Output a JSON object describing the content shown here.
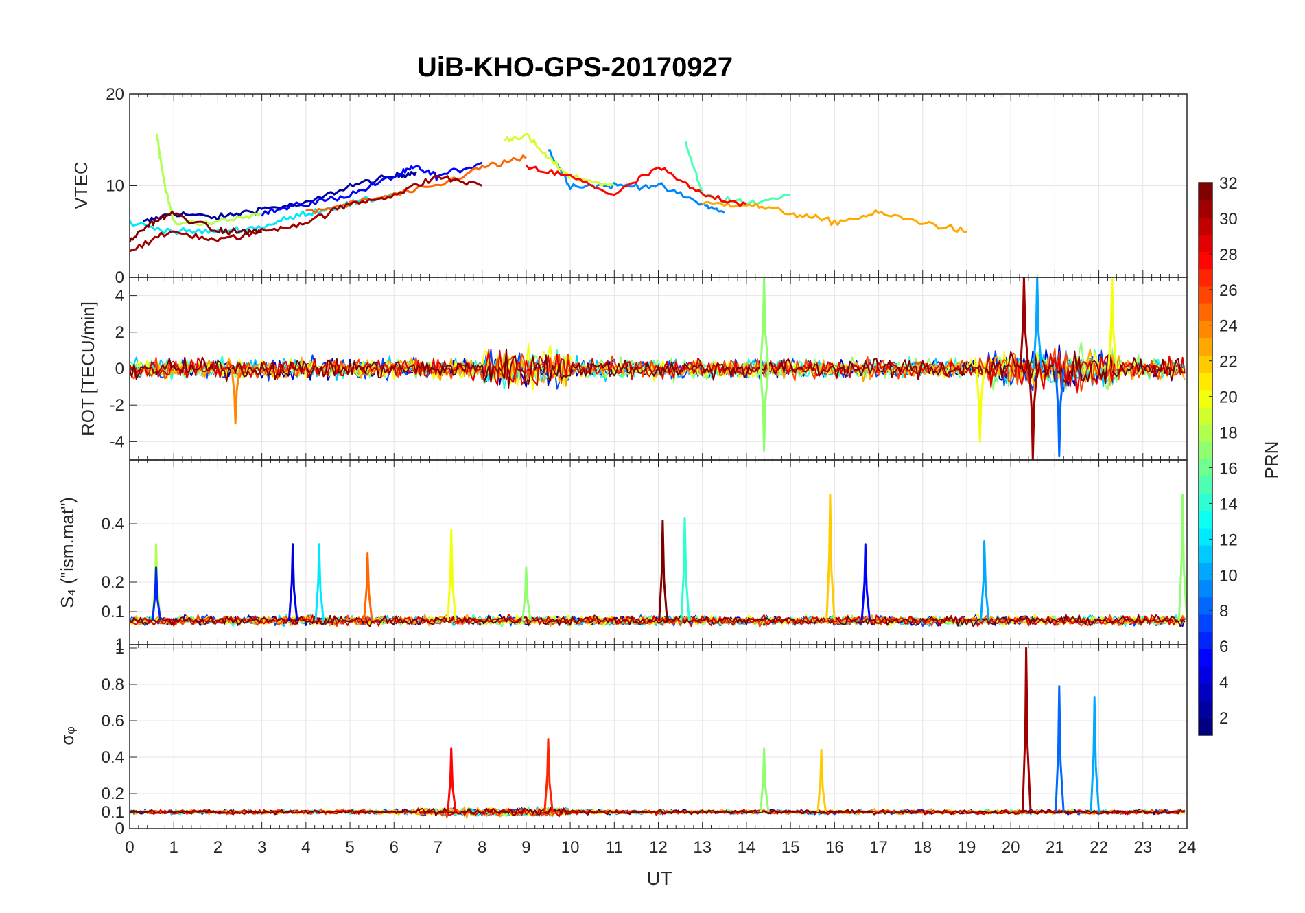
{
  "title": "UiB-KHO-GPS-20170927",
  "xlabel": "UT",
  "x_ticks": [
    "0",
    "1",
    "2",
    "3",
    "4",
    "5",
    "6",
    "7",
    "8",
    "9",
    "10",
    "11",
    "12",
    "13",
    "14",
    "15",
    "16",
    "17",
    "18",
    "19",
    "20",
    "21",
    "22",
    "23",
    "24"
  ],
  "colorbar": {
    "label": "PRN",
    "ticks": [
      "2",
      "4",
      "6",
      "8",
      "10",
      "12",
      "14",
      "16",
      "18",
      "20",
      "22",
      "24",
      "26",
      "28",
      "30",
      "32"
    ],
    "range": [
      1,
      32
    ],
    "colormap": "jet"
  },
  "panels": [
    {
      "ylabel": "VTEC",
      "ticks": [
        "0",
        "10",
        "20"
      ]
    },
    {
      "ylabel": "ROT [TECU/min]",
      "ticks": [
        "-4",
        "-2",
        "0",
        "2",
        "4"
      ]
    },
    {
      "ylabel": "S₄ (\"ism.mat\")",
      "ticks": [
        "0.1",
        "0.2",
        "0.4"
      ],
      "top_tick": "1"
    },
    {
      "ylabel": "σᵩ",
      "ticks": [
        "0",
        "0.1",
        "0.2",
        "0.4",
        "0.6",
        "0.8",
        "1"
      ]
    }
  ],
  "chart_data": {
    "type": "line",
    "x_range": [
      0,
      24
    ],
    "grid": true,
    "colors": {
      "jet_dark_red": "#800000",
      "jet_red": "#ff0000",
      "jet_yellow": "#ffff00",
      "jet_cyan": "#00ffff",
      "jet_blue": "#0000ff",
      "jet_dark_blue": "#000080"
    },
    "panels": [
      {
        "name": "VTEC",
        "ylim": [
          0,
          20
        ],
        "series": [
          {
            "prn": 2,
            "x": [
              0.3,
              1,
              2,
              3,
              4,
              5,
              6,
              6.5
            ],
            "y": [
              6,
              7,
              6.5,
              7.5,
              8,
              10,
              11,
              11.5
            ]
          },
          {
            "prn": 5,
            "x": [
              3,
              4,
              5,
              6,
              6.5,
              7,
              8
            ],
            "y": [
              7,
              8,
              9,
              11,
              12,
              11,
              12.5
            ]
          },
          {
            "prn": 9,
            "x": [
              9.5,
              10,
              11,
              12,
              13,
              13.5
            ],
            "y": [
              14,
              10,
              10,
              10,
              8,
              7
            ]
          },
          {
            "prn": 12,
            "x": [
              0,
              1,
              2,
              3,
              4,
              5,
              6
            ],
            "y": [
              6,
              5,
              5,
              5.5,
              7,
              8,
              9
            ]
          },
          {
            "prn": 15,
            "x": [
              12.6,
              13,
              14,
              15
            ],
            "y": [
              15,
              9,
              8,
              9
            ]
          },
          {
            "prn": 18,
            "x": [
              0.6,
              0.8,
              1,
              2,
              3
            ],
            "y": [
              16,
              10,
              6,
              6,
              7
            ]
          },
          {
            "prn": 19,
            "x": [
              8.5,
              9,
              9.5,
              10,
              11
            ],
            "y": [
              15,
              15.5,
              13,
              11,
              10
            ]
          },
          {
            "prn": 23,
            "x": [
              13,
              14,
              15,
              16,
              17,
              18,
              19
            ],
            "y": [
              8,
              8,
              7,
              6,
              7,
              6,
              5
            ]
          },
          {
            "prn": 25,
            "x": [
              4,
              5,
              6,
              7,
              8,
              9
            ],
            "y": [
              7,
              8,
              9,
              10,
              12,
              13
            ]
          },
          {
            "prn": 28,
            "x": [
              9,
              10,
              11,
              12,
              13,
              14
            ],
            "y": [
              12,
              11,
              9,
              12,
              9,
              8
            ]
          },
          {
            "prn": 31,
            "x": [
              0,
              1,
              2,
              3,
              4,
              5,
              6,
              7,
              8
            ],
            "y": [
              3,
              5,
              4,
              5,
              6,
              8,
              9,
              11,
              10
            ]
          },
          {
            "prn": 32,
            "x": [
              0,
              0.5,
              1,
              2,
              2.5,
              3
            ],
            "y": [
              4,
              6,
              7,
              5,
              5,
              5
            ]
          }
        ]
      },
      {
        "name": "ROT",
        "ylim": [
          -5,
          5
        ],
        "peaks": [
          {
            "prn": 31,
            "x": 20.3,
            "y": 5
          },
          {
            "prn": 31,
            "x": 20.5,
            "y": -5
          },
          {
            "prn": 10,
            "x": 20.6,
            "y": 5
          },
          {
            "prn": 20,
            "x": 22.3,
            "y": 5
          },
          {
            "prn": 17,
            "x": 14.4,
            "y": 5
          },
          {
            "prn": 17,
            "x": 14.4,
            "y": -4.5
          },
          {
            "prn": 8,
            "x": 21.1,
            "y": -4.8
          },
          {
            "prn": 24,
            "x": 2.4,
            "y": -3
          },
          {
            "prn": 20,
            "x": 19.3,
            "y": -4
          }
        ]
      },
      {
        "name": "S4",
        "ylim": [
          0,
          0.6
        ],
        "peaks": [
          {
            "prn": 18,
            "x": 0.6,
            "y": 0.33
          },
          {
            "prn": 6,
            "x": 0.6,
            "y": 0.25
          },
          {
            "prn": 4,
            "x": 3.7,
            "y": 0.33
          },
          {
            "prn": 12,
            "x": 4.3,
            "y": 0.33
          },
          {
            "prn": 25,
            "x": 5.4,
            "y": 0.3
          },
          {
            "prn": 20,
            "x": 7.3,
            "y": 0.38
          },
          {
            "prn": 17,
            "x": 9,
            "y": 0.25
          },
          {
            "prn": 32,
            "x": 12.1,
            "y": 0.41
          },
          {
            "prn": 14,
            "x": 12.6,
            "y": 0.42
          },
          {
            "prn": 22,
            "x": 15.9,
            "y": 0.5
          },
          {
            "prn": 5,
            "x": 16.7,
            "y": 0.33
          },
          {
            "prn": 10,
            "x": 19.4,
            "y": 0.34
          },
          {
            "prn": 17,
            "x": 23.9,
            "y": 0.5
          }
        ]
      },
      {
        "name": "sigma_phi",
        "ylim": [
          0,
          1
        ],
        "peaks": [
          {
            "prn": 28,
            "x": 7.3,
            "y": 0.45
          },
          {
            "prn": 27,
            "x": 9.5,
            "y": 0.5
          },
          {
            "prn": 17,
            "x": 14.4,
            "y": 0.45
          },
          {
            "prn": 22,
            "x": 15.7,
            "y": 0.44
          },
          {
            "prn": 31,
            "x": 20.35,
            "y": 1
          },
          {
            "prn": 8,
            "x": 21.1,
            "y": 0.79
          },
          {
            "prn": 10,
            "x": 21.9,
            "y": 0.73
          }
        ]
      }
    ]
  }
}
